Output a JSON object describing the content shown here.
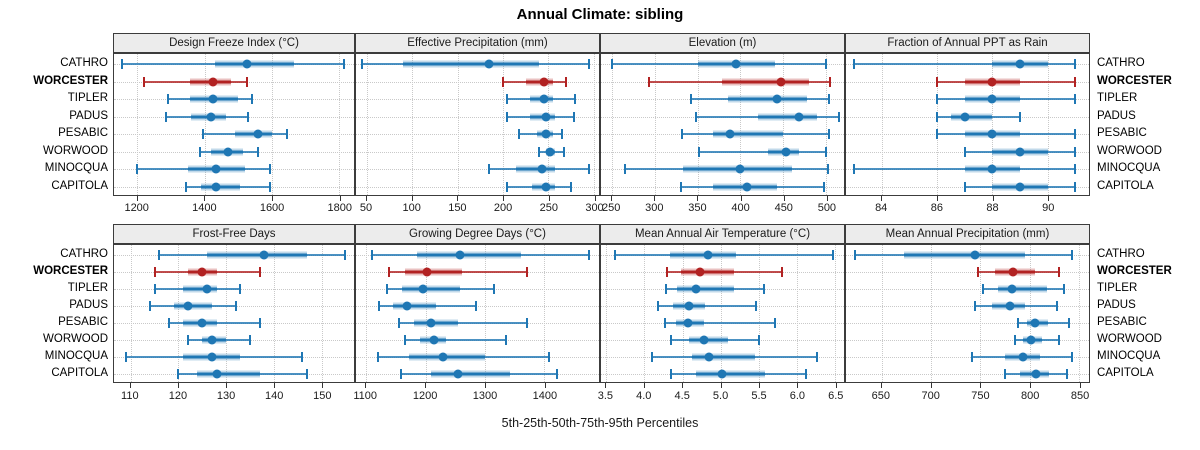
{
  "title": "Annual Climate: sibling",
  "caption": "5th-25th-50th-75th-95th Percentiles",
  "colors": {
    "default_series": "#1f77b4",
    "highlight_series": "#b22222",
    "header_bg": "#ececec",
    "panel_border": "#3c3c3c",
    "grid": "#c9c9c9"
  },
  "sites": [
    {
      "name": "CATHRO",
      "highlight": false
    },
    {
      "name": "WORCESTER",
      "highlight": true
    },
    {
      "name": "TIPLER",
      "highlight": false
    },
    {
      "name": "PADUS",
      "highlight": false
    },
    {
      "name": "PESABIC",
      "highlight": false
    },
    {
      "name": "WORWOOD",
      "highlight": false
    },
    {
      "name": "MINOCQUA",
      "highlight": false
    },
    {
      "name": "CAPITOLA",
      "highlight": false
    }
  ],
  "chart_data": {
    "type": "dotplot-percentile-trellis",
    "percentile_labels": [
      "5th",
      "25th",
      "50th",
      "75th",
      "95th"
    ],
    "legend_note": "5th-25th-50th-75th-95th Percentiles",
    "highlighted_site": "WORCESTER",
    "panels": [
      {
        "title": "Design Freeze Index (°C)",
        "row": 0,
        "col": 0,
        "domain": [
          1130,
          1845
        ],
        "ticks": [
          1200,
          1400,
          1600,
          1800
        ],
        "values": {
          "CATHRO": [
            1155,
            1430,
            1525,
            1665,
            1815
          ],
          "WORCESTER": [
            1220,
            1355,
            1425,
            1480,
            1525
          ],
          "TIPLER": [
            1290,
            1355,
            1425,
            1500,
            1540
          ],
          "PADUS": [
            1285,
            1360,
            1420,
            1465,
            1530
          ],
          "PESABIC": [
            1395,
            1490,
            1560,
            1600,
            1645
          ],
          "WORWOOD": [
            1385,
            1420,
            1470,
            1515,
            1560
          ],
          "MINOCQUA": [
            1200,
            1350,
            1435,
            1520,
            1595
          ],
          "CAPITOLA": [
            1345,
            1390,
            1435,
            1505,
            1595
          ]
        }
      },
      {
        "title": "Effective Precipitation (mm)",
        "row": 0,
        "col": 1,
        "domain": [
          38,
          306
        ],
        "ticks": [
          50,
          100,
          150,
          200,
          250,
          300
        ],
        "values": {
          "CATHRO": [
            45,
            90,
            185,
            240,
            295
          ],
          "WORCESTER": [
            200,
            225,
            245,
            255,
            270
          ],
          "TIPLER": [
            205,
            230,
            245,
            255,
            280
          ],
          "PADUS": [
            205,
            230,
            248,
            258,
            278
          ],
          "PESABIC": [
            218,
            238,
            248,
            255,
            265
          ],
          "WORWOOD": [
            240,
            247,
            252,
            258,
            267
          ],
          "MINOCQUA": [
            185,
            215,
            243,
            258,
            295
          ],
          "CAPITOLA": [
            205,
            232,
            248,
            258,
            275
          ]
        }
      },
      {
        "title": "Elevation (m)",
        "row": 0,
        "col": 2,
        "domain": [
          237,
          521
        ],
        "ticks": [
          250,
          300,
          350,
          400,
          450,
          500
        ],
        "values": {
          "CATHRO": [
            250,
            350,
            395,
            440,
            500
          ],
          "WORCESTER": [
            293,
            378,
            447,
            480,
            505
          ],
          "TIPLER": [
            342,
            385,
            443,
            478,
            503
          ],
          "PADUS": [
            348,
            420,
            468,
            490,
            515
          ],
          "PESABIC": [
            332,
            368,
            388,
            450,
            503
          ],
          "WORWOOD": [
            352,
            432,
            453,
            468,
            500
          ],
          "MINOCQUA": [
            265,
            333,
            400,
            460,
            502
          ],
          "CAPITOLA": [
            330,
            368,
            408,
            443,
            498
          ]
        }
      },
      {
        "title": "Fraction of Annual PPT as Rain",
        "row": 0,
        "col": 3,
        "domain": [
          82.7,
          91.5
        ],
        "ticks": [
          84,
          86,
          88,
          90
        ],
        "values": {
          "CATHRO": [
            83,
            88,
            89,
            90,
            91
          ],
          "WORCESTER": [
            86,
            87,
            88,
            89,
            91
          ],
          "TIPLER": [
            86,
            87,
            88,
            89,
            91
          ],
          "PADUS": [
            86,
            86.5,
            87,
            88,
            89
          ],
          "PESABIC": [
            86,
            87,
            88,
            89,
            91
          ],
          "WORWOOD": [
            87,
            88,
            89,
            90,
            91
          ],
          "MINOCQUA": [
            83,
            87,
            88,
            89,
            91
          ],
          "CAPITOLA": [
            87,
            88,
            89,
            90,
            91
          ]
        }
      },
      {
        "title": "Frost-Free Days",
        "row": 1,
        "col": 0,
        "domain": [
          106.5,
          156.8
        ],
        "ticks": [
          110,
          120,
          130,
          140,
          150
        ],
        "values": {
          "CATHRO": [
            116,
            126,
            138,
            147,
            155
          ],
          "WORCESTER": [
            115,
            122,
            125,
            128,
            137
          ],
          "TIPLER": [
            115,
            121,
            126,
            128,
            133
          ],
          "PADUS": [
            114,
            119,
            122,
            127,
            132
          ],
          "PESABIC": [
            118,
            121,
            125,
            128,
            137
          ],
          "WORWOOD": [
            122,
            125,
            127,
            130,
            135
          ],
          "MINOCQUA": [
            109,
            121,
            127,
            133,
            146
          ],
          "CAPITOLA": [
            120,
            124,
            128,
            137,
            147
          ]
        }
      },
      {
        "title": "Growing Degree Days (°C)",
        "row": 1,
        "col": 1,
        "domain": [
          1083,
          1492
        ],
        "ticks": [
          1100,
          1200,
          1300,
          1400
        ],
        "values": {
          "CATHRO": [
            1110,
            1185,
            1258,
            1360,
            1475
          ],
          "WORCESTER": [
            1138,
            1165,
            1203,
            1262,
            1370
          ],
          "TIPLER": [
            1135,
            1160,
            1195,
            1258,
            1315
          ],
          "PADUS": [
            1122,
            1145,
            1168,
            1218,
            1285
          ],
          "PESABIC": [
            1155,
            1180,
            1210,
            1255,
            1370
          ],
          "WORWOOD": [
            1165,
            1190,
            1215,
            1235,
            1335
          ],
          "MINOCQUA": [
            1120,
            1172,
            1230,
            1300,
            1408
          ],
          "CAPITOLA": [
            1158,
            1210,
            1255,
            1343,
            1422
          ]
        }
      },
      {
        "title": "Mean Annual Air Temperature (°C)",
        "row": 1,
        "col": 2,
        "domain": [
          3.43,
          6.62
        ],
        "ticks": [
          3.5,
          4.0,
          4.5,
          5.0,
          5.5,
          6.0,
          6.5
        ],
        "tick_format": 1,
        "values": {
          "CATHRO": [
            3.62,
            4.33,
            4.83,
            5.2,
            6.47
          ],
          "WORCESTER": [
            4.3,
            4.48,
            4.73,
            5.17,
            5.8
          ],
          "TIPLER": [
            4.28,
            4.43,
            4.68,
            5.17,
            5.57
          ],
          "PADUS": [
            4.18,
            4.37,
            4.58,
            4.8,
            5.47
          ],
          "PESABIC": [
            4.27,
            4.42,
            4.57,
            4.78,
            5.72
          ],
          "WORWOOD": [
            4.35,
            4.58,
            4.78,
            5.1,
            5.5
          ],
          "MINOCQUA": [
            4.1,
            4.62,
            4.85,
            5.45,
            6.27
          ],
          "CAPITOLA": [
            4.35,
            4.68,
            5.02,
            5.58,
            6.12
          ]
        }
      },
      {
        "title": "Mean Annual Precipitation (mm)",
        "row": 1,
        "col": 3,
        "domain": [
          614,
          860
        ],
        "ticks": [
          650,
          700,
          750,
          800,
          850
        ],
        "values": {
          "CATHRO": [
            623,
            673,
            745,
            795,
            843
          ],
          "WORCESTER": [
            748,
            765,
            783,
            805,
            830
          ],
          "TIPLER": [
            753,
            768,
            782,
            817,
            835
          ],
          "PADUS": [
            745,
            762,
            780,
            795,
            828
          ],
          "PESABIC": [
            788,
            797,
            805,
            818,
            840
          ],
          "WORWOOD": [
            785,
            793,
            801,
            812,
            830
          ],
          "MINOCQUA": [
            742,
            775,
            793,
            810,
            843
          ],
          "CAPITOLA": [
            775,
            790,
            806,
            820,
            838
          ]
        }
      }
    ]
  }
}
